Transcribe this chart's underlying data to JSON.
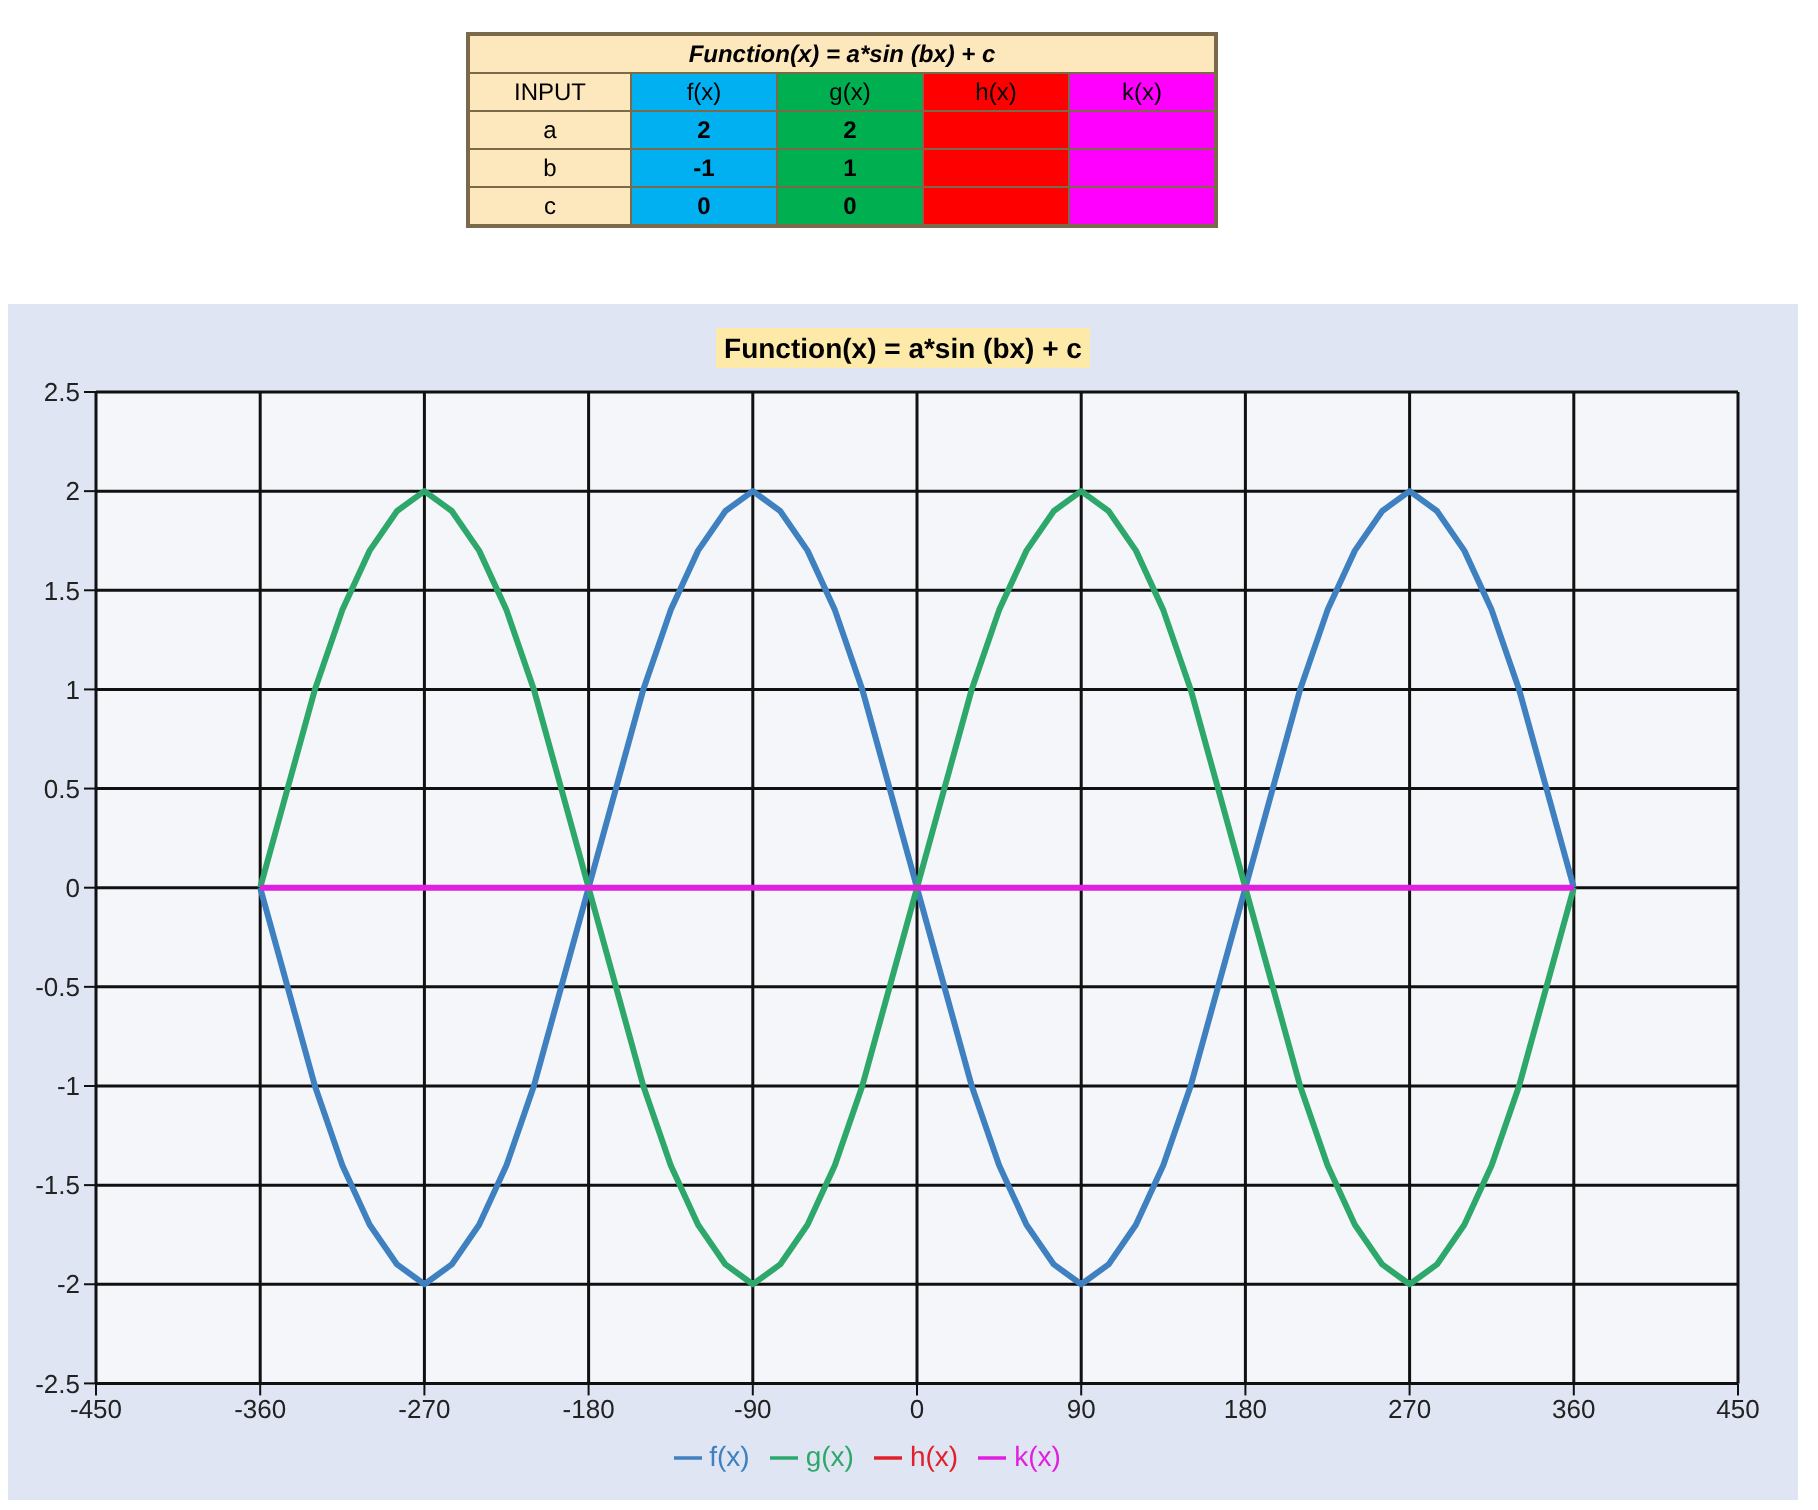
{
  "chart_data": [
    {
      "type": "heatmap",
      "title": "Function(x) = a*sin (bx) + c",
      "ylabel": "INPUT",
      "categories": [
        "f(x)",
        "g(x)",
        "h(x)",
        "k(x)"
      ],
      "y_categories": [
        "a",
        "b",
        "c"
      ],
      "colors": [
        "#00b0f0",
        "#00b050",
        "#ff0000",
        "#ff00ff"
      ],
      "cells": [
        [
          2,
          2,
          null,
          null
        ],
        [
          -1,
          1,
          null,
          null
        ],
        [
          0,
          0,
          null,
          null
        ]
      ],
      "data_labels": true
    },
    {
      "type": "line",
      "title": "Function(x) = a*sin (bx) + c",
      "x": [
        -360,
        -345,
        -330,
        -315,
        -300,
        -285,
        -270,
        -255,
        -240,
        -225,
        -210,
        -195,
        -180,
        -165,
        -150,
        -135,
        -120,
        -105,
        -90,
        -75,
        -60,
        -45,
        -30,
        -15,
        0,
        15,
        30,
        45,
        60,
        75,
        90,
        105,
        120,
        135,
        150,
        165,
        180,
        195,
        210,
        225,
        240,
        255,
        270,
        285,
        300,
        315,
        330,
        345,
        360
      ],
      "series": [
        {
          "name": "f(x)",
          "color": "#3f80c0",
          "values": [
            0,
            -0.5,
            -1,
            -1.4,
            -1.7,
            -1.9,
            -2,
            -1.9,
            -1.7,
            -1.4,
            -1,
            -0.5,
            0,
            0.5,
            1,
            1.4,
            1.7,
            1.9,
            2,
            1.9,
            1.7,
            1.4,
            1,
            0.5,
            0,
            -0.5,
            -1,
            -1.4,
            -1.7,
            -1.9,
            -2,
            -1.9,
            -1.7,
            -1.4,
            -1,
            -0.5,
            0,
            0.5,
            1,
            1.4,
            1.7,
            1.9,
            2,
            1.9,
            1.7,
            1.4,
            1,
            0.5,
            0
          ]
        },
        {
          "name": "g(x)",
          "color": "#2ea86a",
          "values": [
            0,
            0.5,
            1,
            1.4,
            1.7,
            1.9,
            2,
            1.9,
            1.7,
            1.4,
            1,
            0.5,
            0,
            -0.5,
            -1,
            -1.4,
            -1.7,
            -1.9,
            -2,
            -1.9,
            -1.7,
            -1.4,
            -1,
            -0.5,
            0,
            0.5,
            1,
            1.4,
            1.7,
            1.9,
            2,
            1.9,
            1.7,
            1.4,
            1,
            0.5,
            0,
            -0.5,
            -1,
            -1.4,
            -1.7,
            -1.9,
            -2,
            -1.9,
            -1.7,
            -1.4,
            -1,
            -0.5,
            0
          ]
        },
        {
          "name": "h(x)",
          "color": "#e0202a",
          "values": [
            null,
            null,
            null,
            null,
            null,
            null,
            null,
            null,
            null,
            null,
            null,
            null,
            null,
            null,
            null,
            null,
            null,
            null,
            null,
            null,
            null,
            null,
            null,
            null,
            null,
            null,
            null,
            null,
            null,
            null,
            null,
            null,
            null,
            null,
            null,
            null,
            null,
            null,
            null,
            null,
            null,
            null,
            null,
            null,
            null,
            null,
            null,
            null,
            null
          ]
        },
        {
          "name": "k(x)",
          "color": "#e020e0",
          "values": [
            0,
            0,
            0,
            0,
            0,
            0,
            0,
            0,
            0,
            0,
            0,
            0,
            0,
            0,
            0,
            0,
            0,
            0,
            0,
            0,
            0,
            0,
            0,
            0,
            0,
            0,
            0,
            0,
            0,
            0,
            0,
            0,
            0,
            0,
            0,
            0,
            0,
            0,
            0,
            0,
            0,
            0,
            0,
            0,
            0,
            0,
            0,
            0,
            0
          ]
        }
      ],
      "xlim": [
        -450,
        450
      ],
      "xticks": [
        -450,
        -360,
        -270,
        -180,
        -90,
        0,
        90,
        180,
        270,
        360,
        450
      ],
      "ylim": [
        -2.5,
        2.5
      ],
      "yticks": [
        -2.5,
        -2,
        -1.5,
        -1,
        -0.5,
        0,
        0.5,
        1,
        1.5,
        2,
        2.5
      ],
      "grid": true,
      "legend": "bottom",
      "marker": "none",
      "line_style": "solid"
    }
  ]
}
